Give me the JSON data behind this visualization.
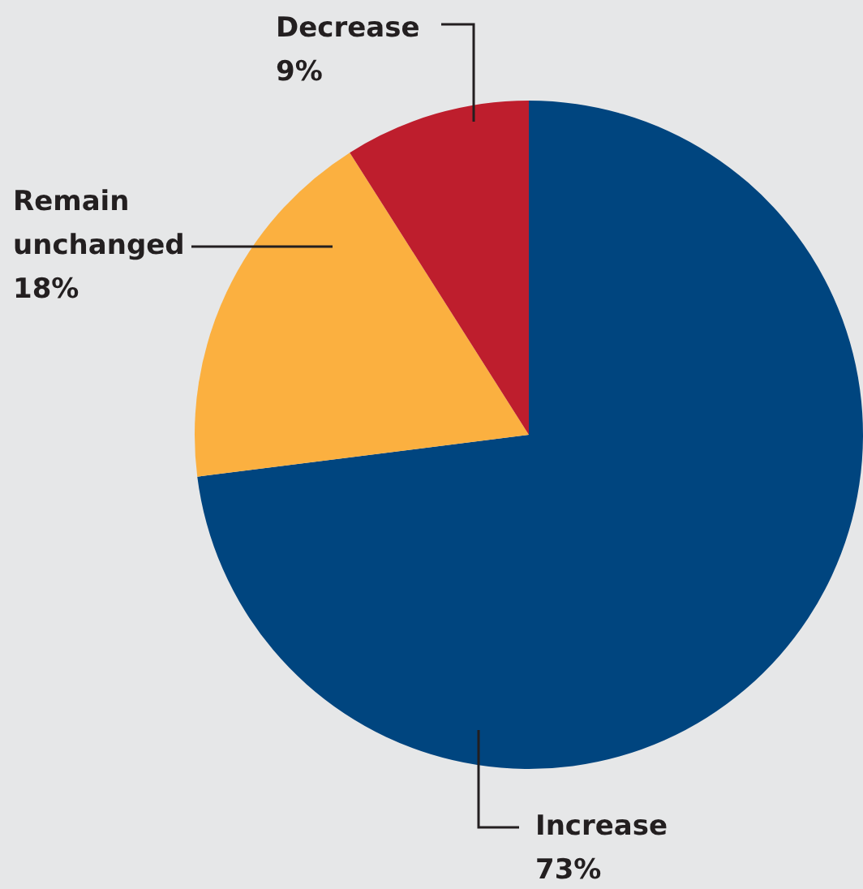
{
  "chart_data": {
    "type": "pie",
    "categories": [
      "Increase",
      "Remain unchanged",
      "Decrease"
    ],
    "values": [
      73,
      18,
      9
    ],
    "colors": [
      "#00457f",
      "#fbb040",
      "#be1e2d"
    ],
    "value_labels": [
      "73%",
      "18%",
      "9%"
    ],
    "legend": false
  }
}
